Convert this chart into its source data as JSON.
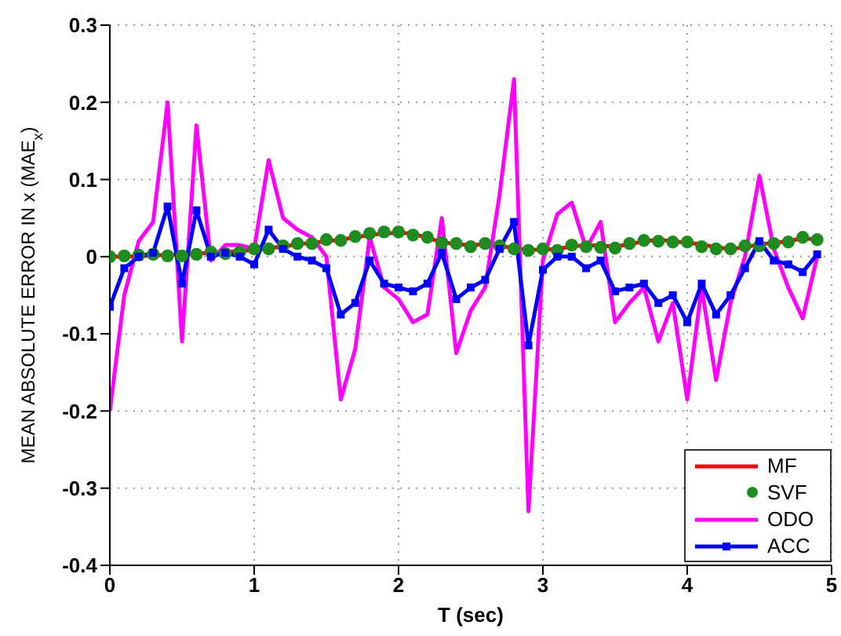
{
  "chart_data": {
    "type": "line",
    "xlabel": "T (sec)",
    "ylabel": "MEAN ABSOLUTE ERROR IN x (MAE$_{x}$)",
    "x": [
      0,
      0.1,
      0.2,
      0.3,
      0.4,
      0.5,
      0.6,
      0.7,
      0.8,
      0.9,
      1,
      1.1,
      1.2,
      1.3,
      1.4,
      1.5,
      1.6,
      1.7,
      1.8,
      1.9,
      2,
      2.1,
      2.2,
      2.3,
      2.4,
      2.5,
      2.6,
      2.7,
      2.8,
      2.9,
      3,
      3.1,
      3.2,
      3.3,
      3.4,
      3.5,
      3.6,
      3.7,
      3.8,
      3.9,
      4,
      4.1,
      4.2,
      4.3,
      4.4,
      4.5,
      4.6,
      4.7,
      4.8,
      4.9
    ],
    "series": [
      {
        "name": "MF",
        "color": "#ff0000",
        "marker": "none",
        "values": [
          0,
          0,
          0,
          0.002,
          0.002,
          0.003,
          0.004,
          0.005,
          0.006,
          0.007,
          0.009,
          0.011,
          0.013,
          0.016,
          0.018,
          0.02,
          0.022,
          0.025,
          0.028,
          0.03,
          0.031,
          0.03,
          0.024,
          0.019,
          0.016,
          0.015,
          0.016,
          0.014,
          0.011,
          0.009,
          0.009,
          0.01,
          0.013,
          0.015,
          0.014,
          0.013,
          0.016,
          0.02,
          0.022,
          0.02,
          0.018,
          0.016,
          0.012,
          0.01,
          0.012,
          0.016,
          0.018,
          0.02,
          0.024,
          0.022
        ]
      },
      {
        "name": "SVF",
        "type": "scatter",
        "color": "#1e8c1e",
        "marker": "circle",
        "values": [
          0,
          0.001,
          0.002,
          0.003,
          0.001,
          0.001,
          0.003,
          0.006,
          0.004,
          0.006,
          0.01,
          0.01,
          0.014,
          0.017,
          0.017,
          0.022,
          0.021,
          0.026,
          0.03,
          0.032,
          0.032,
          0.028,
          0.025,
          0.018,
          0.017,
          0.013,
          0.017,
          0.014,
          0.01,
          0.008,
          0.01,
          0.008,
          0.015,
          0.013,
          0.012,
          0.011,
          0.017,
          0.021,
          0.02,
          0.019,
          0.019,
          0.013,
          0.01,
          0.01,
          0.014,
          0.014,
          0.017,
          0.019,
          0.025,
          0.022
        ]
      },
      {
        "name": "ODO",
        "color": "#ff00ff",
        "marker": "none",
        "values": [
          -0.2,
          -0.05,
          0.02,
          0.045,
          0.2,
          -0.11,
          0.17,
          -0.005,
          0.015,
          0.015,
          0.01,
          0.125,
          0.05,
          0.035,
          0.025,
          0,
          -0.185,
          -0.12,
          0.025,
          -0.04,
          -0.055,
          -0.085,
          -0.075,
          0.05,
          -0.125,
          -0.07,
          -0.04,
          0.08,
          0.23,
          -0.33,
          -0.005,
          0.055,
          0.07,
          0.01,
          0.045,
          -0.085,
          -0.06,
          -0.04,
          -0.11,
          -0.06,
          -0.185,
          -0.04,
          -0.16,
          -0.06,
          0,
          0.105,
          0.01,
          -0.04,
          -0.08,
          0
        ]
      },
      {
        "name": "ACC",
        "color": "#0000ff",
        "marker": "square",
        "values": [
          -0.065,
          -0.015,
          0,
          0.005,
          0.065,
          -0.035,
          0.06,
          0,
          0.005,
          0,
          -0.01,
          0.035,
          0.01,
          0,
          -0.005,
          -0.015,
          -0.075,
          -0.06,
          -0.005,
          -0.035,
          -0.04,
          -0.045,
          -0.035,
          0.005,
          -0.055,
          -0.04,
          -0.03,
          0.01,
          0.045,
          -0.115,
          -0.017,
          0,
          0,
          -0.015,
          -0.005,
          -0.045,
          -0.04,
          -0.035,
          -0.06,
          -0.05,
          -0.085,
          -0.035,
          -0.075,
          -0.05,
          -0.015,
          0.02,
          -0.005,
          -0.01,
          -0.02,
          0.003
        ]
      }
    ],
    "xlim": [
      0,
      5
    ],
    "xticks": [
      0,
      1,
      2,
      3,
      4,
      5
    ],
    "ylim": [
      -0.4,
      0.3
    ],
    "yticks": [
      -0.4,
      -0.3,
      -0.2,
      -0.1,
      0,
      0.1,
      0.2,
      0.3
    ],
    "grid": true,
    "legend": "bottom right"
  }
}
